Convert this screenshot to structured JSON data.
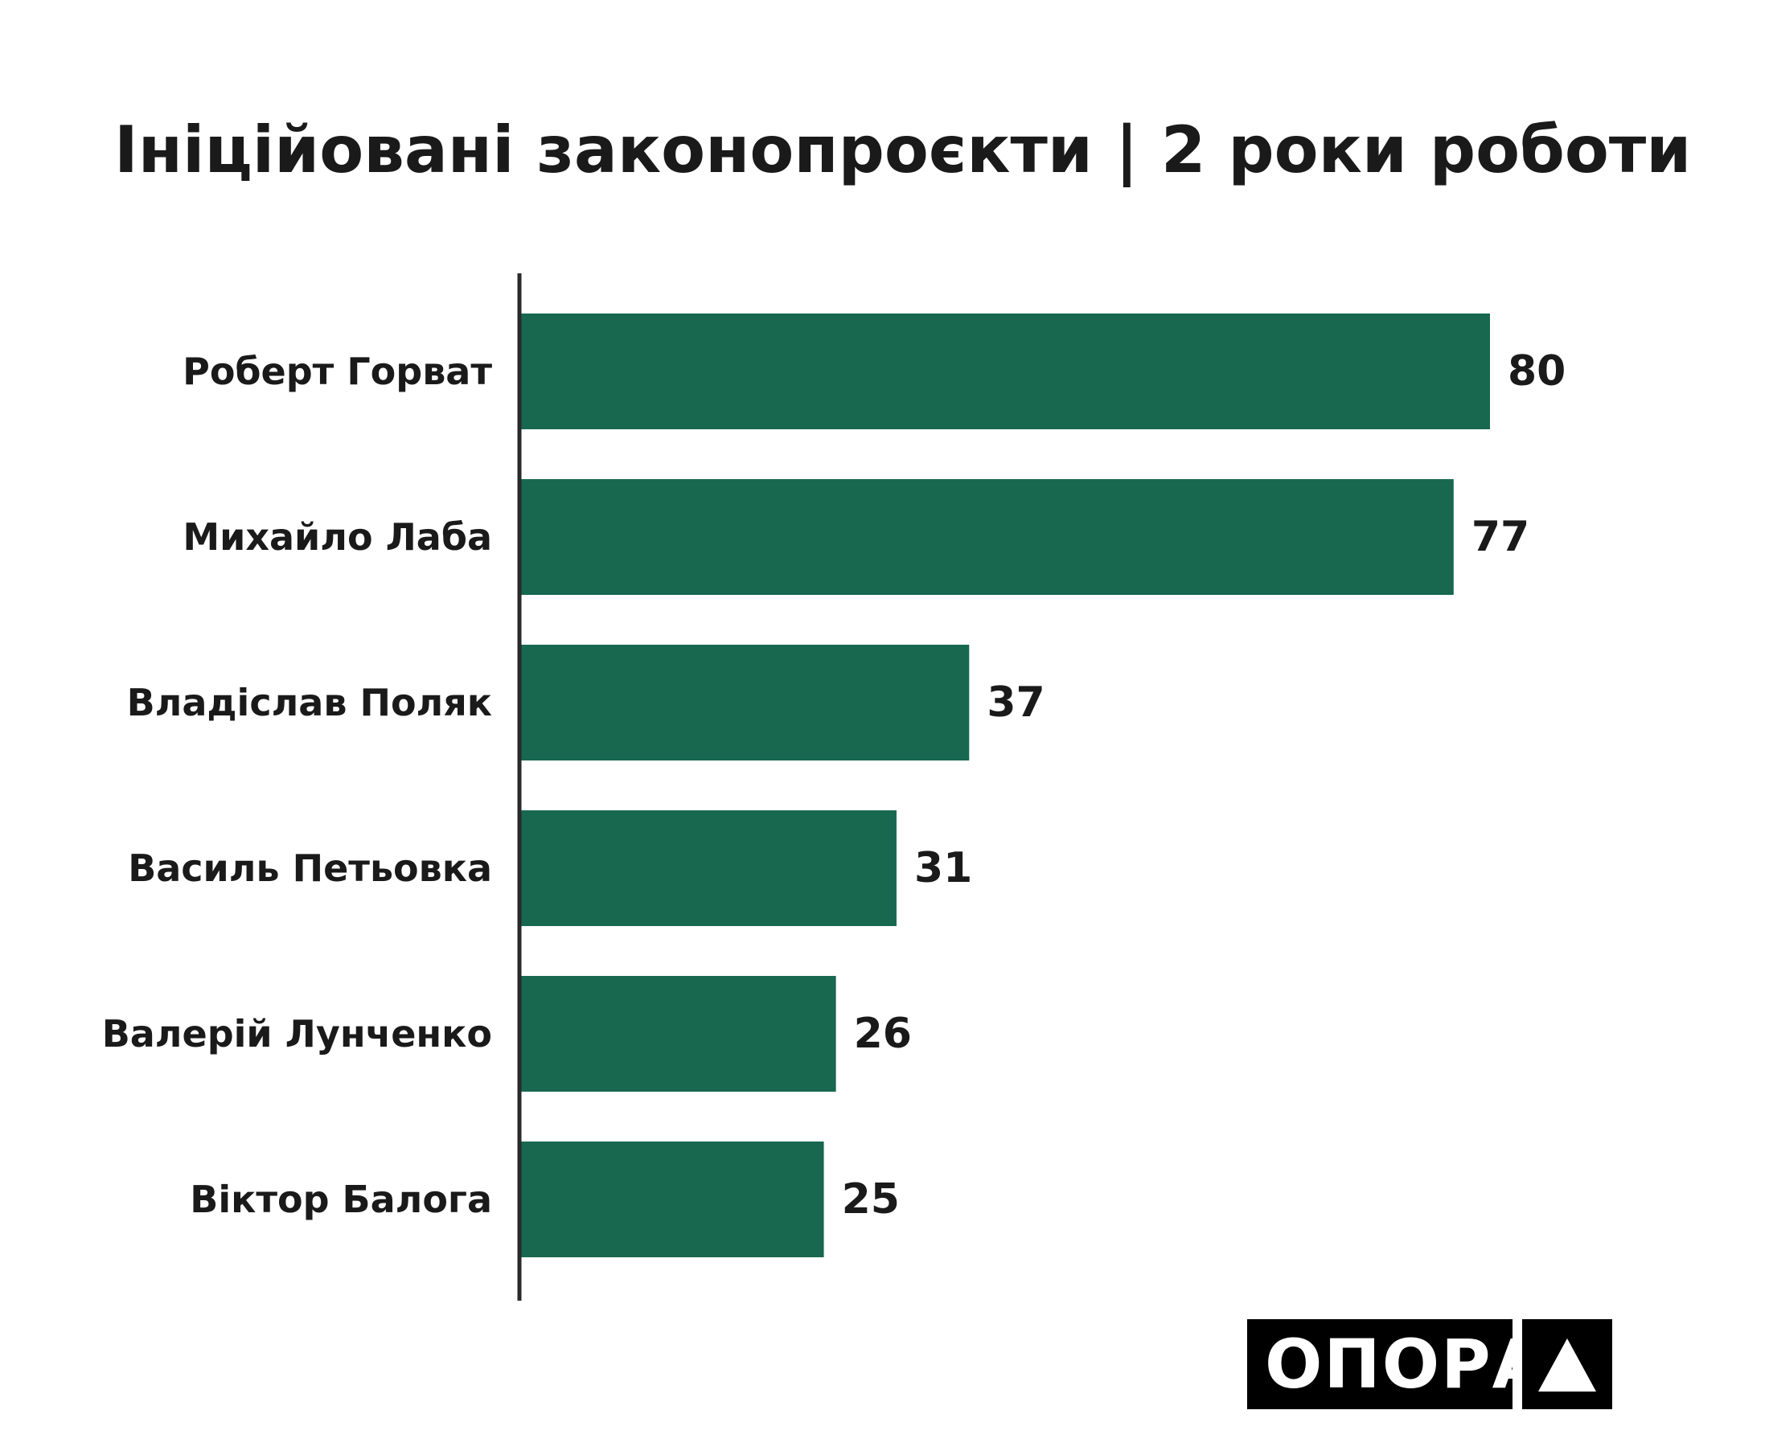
{
  "chart_data": {
    "type": "bar",
    "orientation": "horizontal",
    "title": "Ініційовані законопроєкти | 2 роки роботи",
    "categories": [
      "Роберт Горват",
      "Михайло Лаба",
      "Владіслав Поляк",
      "Василь Петьовка",
      "Валерій Лунченко",
      "Віктор Балога"
    ],
    "values": [
      80,
      77,
      37,
      31,
      26,
      25
    ],
    "xlim": [
      0,
      85
    ],
    "grid": false,
    "bar_color": "#17684f",
    "axis_color": "#2a2a2a"
  },
  "logo": {
    "text": "ОПОРА",
    "icon": "triangle-icon"
  }
}
